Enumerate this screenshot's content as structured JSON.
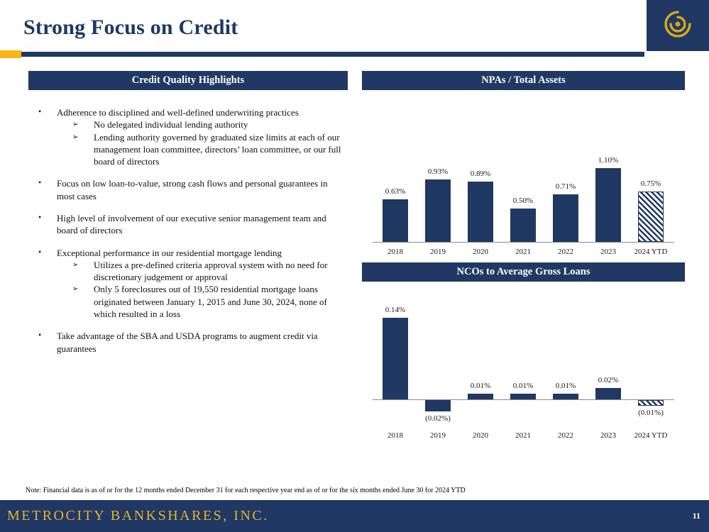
{
  "slide": {
    "title": "Strong Focus on Credit",
    "footer_text": "METROCITY BANKSHARES, INC.",
    "page_number": "11",
    "note": "Note: Financial data is as of or for the 12 months ended December 31 for each respective year end as of or for the six months ended June 30 for 2024 YTD"
  },
  "colors": {
    "navy": "#1F3864",
    "gold": "#FDB515",
    "footer_gold": "#E8B32C",
    "axis_line": "#8a8a8a"
  },
  "icons": {
    "logo": "swirl-logo-icon",
    "bullet": "•",
    "sub_bullet": "➢"
  },
  "left_panel": {
    "header": "Credit Quality Highlights",
    "bullets": [
      {
        "text": "Adherence to disciplined and well-defined underwriting practices",
        "subs": [
          "No delegated individual lending authority",
          "Lending authority governed by graduated size limits at each of our management loan committee, directors’ loan committee, or our full board of directors"
        ]
      },
      {
        "text": "Focus on low loan-to-value, strong cash flows and personal guarantees in most cases",
        "subs": []
      },
      {
        "text": "High level of involvement of our executive senior management team and board of directors",
        "subs": []
      },
      {
        "text": "Exceptional performance in our residential mortgage lending",
        "subs": [
          "Utilizes a pre-defined criteria approval system with no need for discretionary judgement or approval",
          "Only 5 foreclosures out of 19,550 residential mortgage loans originated between January 1, 2015 and June 30, 2024, none of which resulted in a loss"
        ]
      },
      {
        "text": "Take advantage of the SBA and USDA programs to augment credit via guarantees",
        "subs": []
      }
    ]
  },
  "chart_data": [
    {
      "type": "bar",
      "title": "NPAs / Total Assets",
      "categories": [
        "2018",
        "2019",
        "2020",
        "2021",
        "2022",
        "2023",
        "2024 YTD"
      ],
      "values": [
        0.63,
        0.93,
        0.89,
        0.5,
        0.71,
        1.1,
        0.75
      ],
      "value_labels": [
        "0.63%",
        "0.93%",
        "0.89%",
        "0.50%",
        "0.71%",
        "1.10%",
        "0.75%"
      ],
      "hatched": [
        false,
        false,
        false,
        false,
        false,
        false,
        true
      ],
      "unit": "%",
      "ylim": [
        0,
        1.2
      ],
      "grid": false,
      "legend": "none",
      "xlabel": "",
      "ylabel": ""
    },
    {
      "type": "bar",
      "title": "NCOs to Average Gross Loans",
      "categories": [
        "2018",
        "2019",
        "2020",
        "2021",
        "2022",
        "2023",
        "2024 YTD"
      ],
      "values": [
        0.14,
        -0.02,
        0.01,
        0.01,
        0.01,
        0.02,
        -0.01
      ],
      "value_labels": [
        "0.14%",
        "(0.02%)",
        "0.01%",
        "0.01%",
        "0.01%",
        "0.02%",
        "(0.01%)"
      ],
      "hatched": [
        false,
        false,
        false,
        false,
        false,
        false,
        true
      ],
      "unit": "%",
      "ylim": [
        -0.04,
        0.16
      ],
      "grid": false,
      "legend": "none",
      "xlabel": "",
      "ylabel": ""
    }
  ]
}
